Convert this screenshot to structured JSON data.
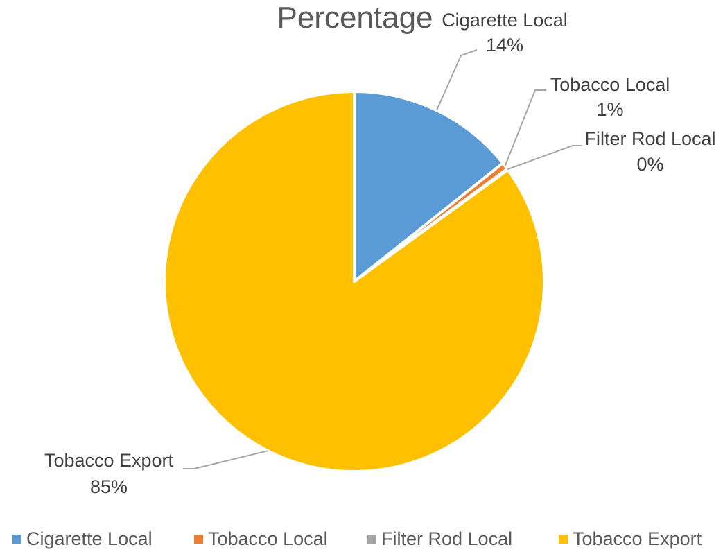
{
  "chart_data": {
    "type": "pie",
    "title": "Percentage",
    "categories": [
      "Cigarette Local",
      "Tobacco Local",
      "Filter Rod Local",
      "Tobacco Export"
    ],
    "values": [
      14.3,
      0.6,
      0.1,
      85.0
    ],
    "data_labels": [
      "14%",
      "1%",
      "0%",
      "85%"
    ],
    "colors": [
      "#5b9bd5",
      "#ed7d31",
      "#a5a5a5",
      "#ffc000"
    ],
    "legend_position": "bottom",
    "start_angle_deg": 0,
    "direction": "clockwise"
  }
}
